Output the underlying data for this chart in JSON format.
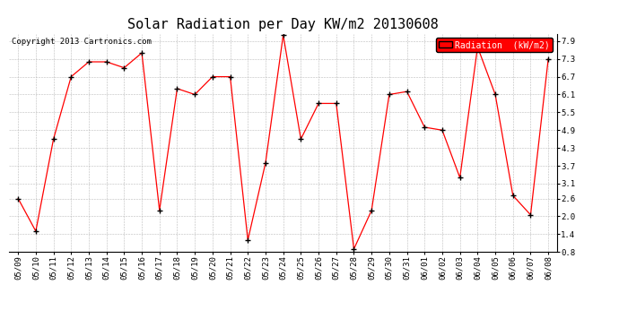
{
  "title": "Solar Radiation per Day KW/m2 20130608",
  "copyright": "Copyright 2013 Cartronics.com",
  "legend_label": "Radiation  (kW/m2)",
  "dates": [
    "05/09",
    "05/10",
    "05/11",
    "05/12",
    "05/13",
    "05/14",
    "05/15",
    "05/16",
    "05/17",
    "05/18",
    "05/19",
    "05/20",
    "05/21",
    "05/22",
    "05/23",
    "05/24",
    "05/25",
    "05/26",
    "05/27",
    "05/28",
    "05/29",
    "05/30",
    "05/31",
    "06/01",
    "06/02",
    "06/03",
    "06/04",
    "06/05",
    "06/06",
    "06/07",
    "06/08"
  ],
  "values": [
    2.6,
    1.5,
    4.6,
    6.7,
    7.2,
    7.2,
    7.0,
    7.5,
    2.2,
    6.3,
    6.1,
    6.7,
    6.7,
    1.2,
    3.8,
    8.1,
    4.6,
    5.8,
    5.8,
    0.9,
    2.2,
    6.1,
    6.2,
    5.0,
    4.9,
    3.3,
    7.7,
    6.1,
    2.7,
    2.05,
    7.3
  ],
  "ylim": [
    0.8,
    8.15
  ],
  "yticks": [
    0.8,
    1.4,
    2.0,
    2.6,
    3.1,
    3.7,
    4.3,
    4.9,
    5.5,
    6.1,
    6.7,
    7.3,
    7.9
  ],
  "line_color": "red",
  "marker_color": "black",
  "background_color": "white",
  "grid_color": "#bbbbbb",
  "title_fontsize": 11,
  "tick_fontsize": 6.5,
  "copyright_fontsize": 6.5,
  "legend_fontsize": 7
}
